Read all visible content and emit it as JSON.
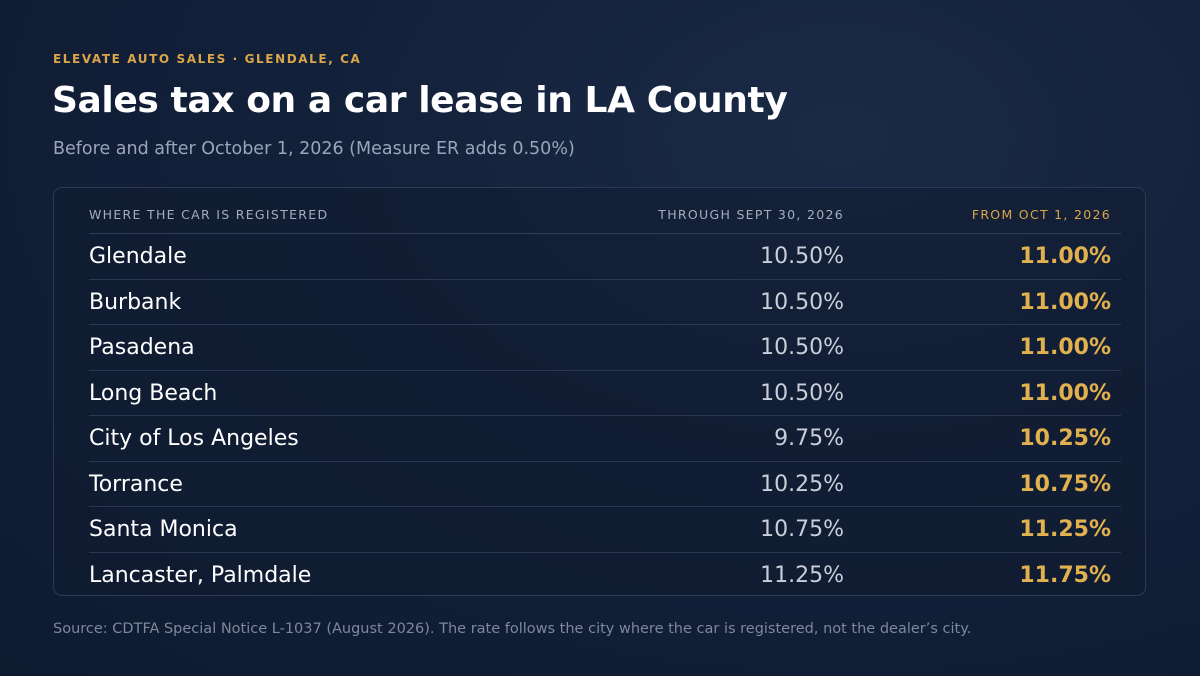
{
  "header": {
    "eyebrow": "ELEVATE AUTO SALES · GLENDALE, CA",
    "title": "Sales tax on a car lease in LA County",
    "subtitle": "Before and after October 1, 2026 (Measure ER adds 0.50%)"
  },
  "colors": {
    "background": "#13203a",
    "accent": "#d9a64a",
    "text": "#ffffff",
    "muted": "#9aa5b8"
  },
  "chart_data": {
    "type": "table",
    "columns": [
      "WHERE THE CAR IS REGISTERED",
      "THROUGH SEPT 30, 2026",
      "FROM OCT 1, 2026"
    ],
    "rows": [
      {
        "city": "Glendale",
        "before": "10.50%",
        "after": "11.00%"
      },
      {
        "city": "Burbank",
        "before": "10.50%",
        "after": "11.00%"
      },
      {
        "city": "Pasadena",
        "before": "10.50%",
        "after": "11.00%"
      },
      {
        "city": "Long Beach",
        "before": "10.50%",
        "after": "11.00%"
      },
      {
        "city": "City of Los Angeles",
        "before": "9.75%",
        "after": "10.25%"
      },
      {
        "city": "Torrance",
        "before": "10.25%",
        "after": "10.75%"
      },
      {
        "city": "Santa Monica",
        "before": "10.75%",
        "after": "11.25%"
      },
      {
        "city": "Lancaster, Palmdale",
        "before": "11.25%",
        "after": "11.75%"
      }
    ]
  },
  "footer": {
    "source": "Source: CDTFA Special Notice L-1037 (August 2026). The rate follows the city where the car is registered, not the dealer’s city."
  }
}
